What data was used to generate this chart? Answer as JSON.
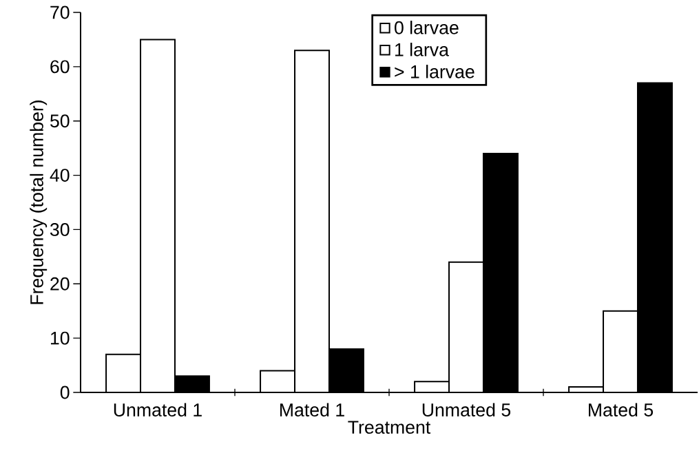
{
  "chart_data": {
    "type": "bar",
    "xlabel": "Treatment",
    "ylabel": "Frequency (total number)",
    "categories": [
      "Unmated 1",
      "Mated 1",
      "Unmated 5",
      "Mated 5"
    ],
    "series": [
      {
        "name": "0 larvae",
        "color": "#ffffff",
        "values": [
          7,
          4,
          2,
          1
        ]
      },
      {
        "name": "1 larva",
        "color": "#ffffff",
        "values": [
          65,
          63,
          24,
          15
        ]
      },
      {
        "name": "> 1 larvae",
        "color": "#000000",
        "values": [
          3,
          8,
          44,
          57
        ]
      }
    ],
    "ylim": [
      0,
      70
    ],
    "yticks": [
      0,
      10,
      20,
      30,
      40,
      50,
      60,
      70
    ],
    "legend": "top"
  }
}
